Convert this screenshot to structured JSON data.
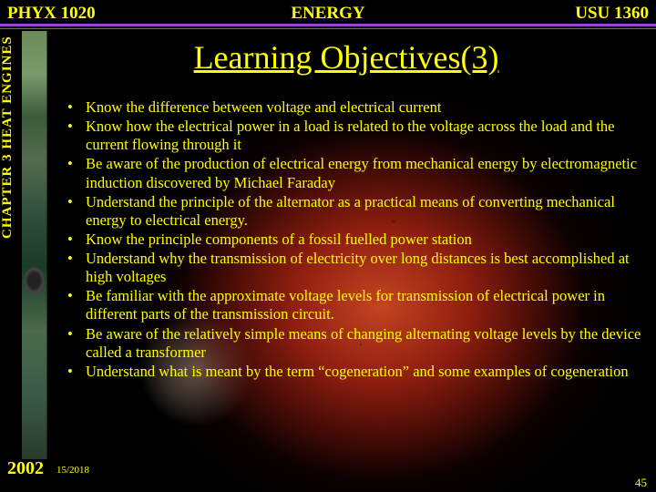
{
  "header": {
    "left": "PHYX 1020",
    "center": "ENERGY",
    "right": "USU 1360"
  },
  "sidebar": "CHAPTER 3  HEAT ENGINES",
  "title": "Learning Objectives(3)",
  "bullets": [
    "Know the difference between voltage and electrical current",
    "Know how the electrical power in a load is related to the voltage across the load and the current flowing through it",
    "Be aware of the production of electrical energy from mechanical energy by electromagnetic induction discovered by Michael Faraday",
    "Understand the principle of the alternator as a practical means of converting mechanical energy to electrical energy.",
    "Know the principle components of a fossil fuelled power station",
    "Understand why the transmission of electricity over long distances is best accomplished at high voltages",
    "Be familiar with the approximate voltage levels for transmission of electrical power in different parts of the transmission circuit.",
    "Be aware of the relatively simple means of changing alternating voltage levels by the device called a transformer",
    "Understand what is meant by the term “cogeneration” and some examples of cogeneration"
  ],
  "footer": {
    "year": "2002",
    "date": "15/2018",
    "page": "45"
  },
  "colors": {
    "text": "#ffff00",
    "rule": "#a040d0",
    "bg": "#000000"
  }
}
